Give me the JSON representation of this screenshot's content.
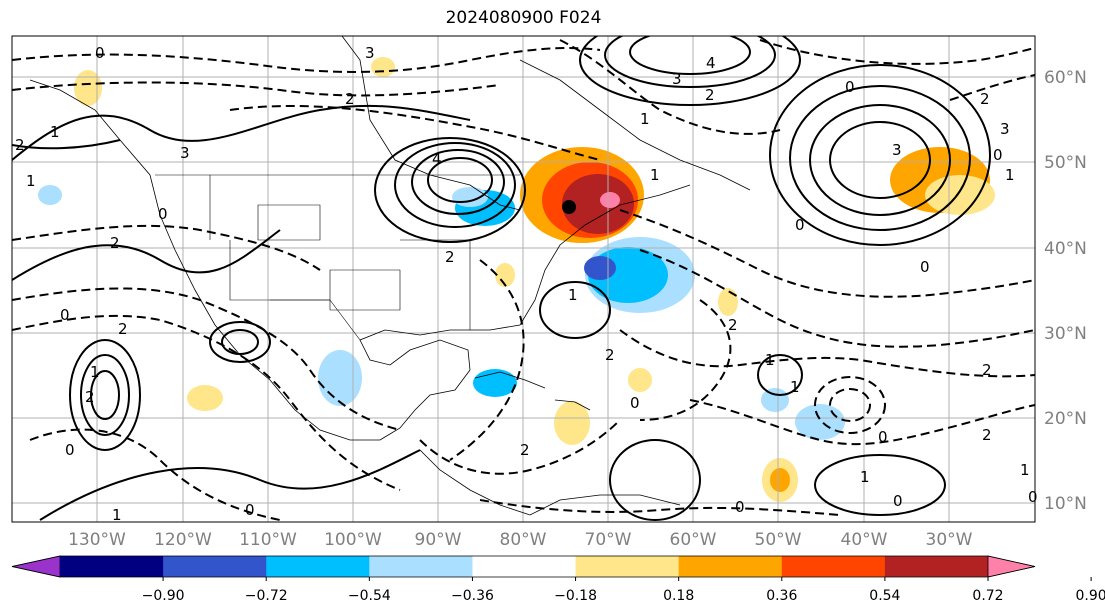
{
  "title": "2024080900 F024",
  "map": {
    "lon_labels": [
      "130°W",
      "120°W",
      "110°W",
      "100°W",
      "90°W",
      "80°W",
      "70°W",
      "60°W",
      "50°W",
      "40°W",
      "30°W"
    ],
    "lat_labels": [
      "60°N",
      "50°N",
      "40°N",
      "30°N",
      "20°N",
      "10°N"
    ],
    "axis_label_color": "#808080",
    "contour_labels": [
      "0",
      "3",
      "2",
      "1",
      "2",
      "4",
      "3",
      "2",
      "0",
      "2",
      "1",
      "3",
      "4",
      "3",
      "0",
      "3",
      "2",
      "1",
      "2",
      "2",
      "1",
      "0",
      "1",
      "2",
      "0",
      "0",
      "1",
      "2",
      "2",
      "0",
      "1",
      "1",
      "2",
      "0",
      "2",
      "1",
      "0",
      "0",
      "1",
      "0",
      "1",
      "0",
      "2",
      "1",
      "0",
      "0"
    ],
    "marker": "filled-circle"
  },
  "colorbar": {
    "ticks": [
      "−0.90",
      "−0.72",
      "−0.54",
      "−0.36",
      "−0.18",
      "0.18",
      "0.36",
      "0.54",
      "0.72",
      "0.90"
    ],
    "colors": [
      "#9933cc",
      "#000080",
      "#3355cc",
      "#00bfff",
      "#aadfff",
      "#ffffff",
      "#ffe68a",
      "#ffa500",
      "#ff4500",
      "#b22222",
      "#ff80a8"
    ]
  }
}
